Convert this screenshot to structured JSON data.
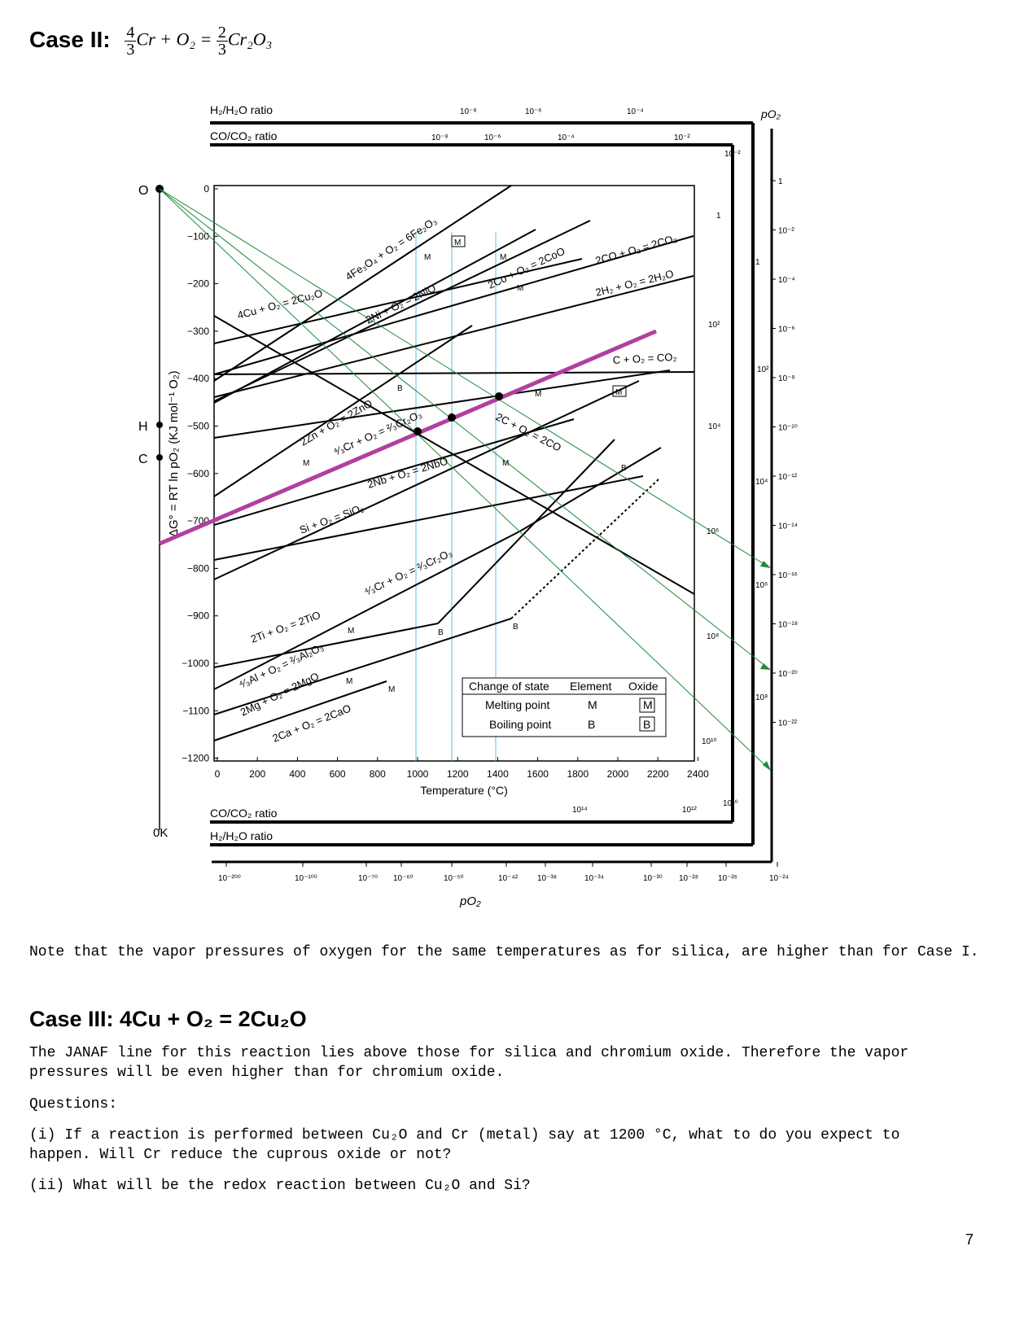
{
  "case2": {
    "heading": "Case II:",
    "eq_n1": "4",
    "eq_d1": "3",
    "eq_mid": "Cr + O₂ =",
    "eq_n2": "2",
    "eq_d2": "3",
    "eq_end": "Cr₂O₃"
  },
  "figure": {
    "h2_ratio_label": "H₂/H₂O ratio",
    "co_ratio_label": "CO/CO₂ ratio",
    "po2_label": "pO₂",
    "y_axis_label": "ΔG° = RT ln pO₂ (KJ mol⁻¹ O₂)",
    "x_axis_label": "Temperature (°C)",
    "x_ticks": [
      "0",
      "200",
      "400",
      "600",
      "800",
      "1000",
      "1200",
      "1400",
      "1600",
      "1800",
      "2000",
      "2200",
      "2400"
    ],
    "y_ticks": [
      "0",
      "−100",
      "−200",
      "−300",
      "−400",
      "−500",
      "−600",
      "−700",
      "−800",
      "−900",
      "−1000",
      "−1100",
      "−1200"
    ],
    "left_markers": [
      "O",
      "H",
      "C"
    ],
    "zero_k": "0K",
    "top_h2_ticks": [
      "10⁻⁸",
      "10⁻⁶",
      "10⁻⁴"
    ],
    "top_co_ticks": [
      "10⁻⁸",
      "10⁻⁶",
      "10⁻⁴",
      "10⁻²"
    ],
    "right_inner_h2": [
      "10⁻²",
      "1",
      "10²",
      "10⁴",
      "10⁶",
      "10⁸",
      "10¹⁰"
    ],
    "right_inner_co": [
      "1",
      "10²",
      "10⁴",
      "10⁶",
      "10⁸"
    ],
    "right_po2_ticks": [
      "1",
      "10⁻²",
      "10⁻⁴",
      "10⁻⁶",
      "10⁻⁸",
      "10⁻¹⁰",
      "10⁻¹²",
      "10⁻¹⁴",
      "10⁻¹⁶",
      "10⁻¹⁸",
      "10⁻²⁰",
      "10⁻²²"
    ],
    "bottom_co_ticks": [
      "10¹⁴",
      "10¹²",
      "10¹⁰"
    ],
    "bottom_po2_ticks": [
      "10⁻²⁰⁰",
      "10⁻¹⁰⁰",
      "10⁻⁷⁰",
      "10⁻⁶⁰",
      "10⁻⁵⁰",
      "10⁻⁴²",
      "10⁻³⁸",
      "10⁻³⁴",
      "10⁻³⁰",
      "10⁻²⁸",
      "10⁻²⁶",
      "10⁻²⁴"
    ],
    "reactions": {
      "fe": "4Fe₃O₄ + O₂ = 6Fe₂O₃",
      "cu": "4Cu + O₂ = 2Cu₂O",
      "ni": "2Ni + O₂ = 2NiO",
      "co": "2Co + O₂ = 2CoO",
      "co2": "2CO + O₂ = 2CO₂",
      "h2o": "2H₂ + O₂ = 2H₂O",
      "cco2": "C + O₂ = CO₂",
      "zn": "2Zn + O₂ = 2ZnO",
      "cr": "⁴⁄₃Cr + O₂ = ²⁄₃Cr₂O₃",
      "cco": "2C + O₂ = 2CO",
      "nb": "2Nb + O₂ = 2NbO",
      "si": "Si + O₂ = SiO₂",
      "ti": "2Ti + O₂ = 2TiO",
      "al": "⁴⁄₃Al + O₂ = ²⁄₃Al₂O₃",
      "mg": "2Mg + O₂ = 2MgO",
      "ca": "2Ca + O₂ = 2CaO"
    },
    "legend": {
      "h1": "Change of state",
      "h2": "Element",
      "h3": "Oxide",
      "r1": "Melting point",
      "r2": "Boiling point",
      "m": "M",
      "b": "B"
    },
    "colors": {
      "line": "#000000",
      "magenta": "#b23fa0",
      "green": "#1f8a3a",
      "cyan": "#5bc0e6"
    }
  },
  "note": "Note that the vapor pressures of oxygen for the same temperatures as for silica, are higher than for Case I.",
  "case3": {
    "heading": "Case III: 4Cu + O₂ = 2Cu₂O",
    "p1": "The JANAF line for this reaction lies above those for silica and chromium oxide. Therefore the vapor pressures will be even higher than for chromium oxide.",
    "p2": "Questions:",
    "p3": "(i) If a reaction is performed between Cu₂O and Cr (metal) say at 1200 °C, what to do you expect to happen. Will Cr reduce the cuprous oxide or not?",
    "p4": "(ii) What will be the redox reaction between Cu₂O and Si?"
  },
  "page_number": "7"
}
